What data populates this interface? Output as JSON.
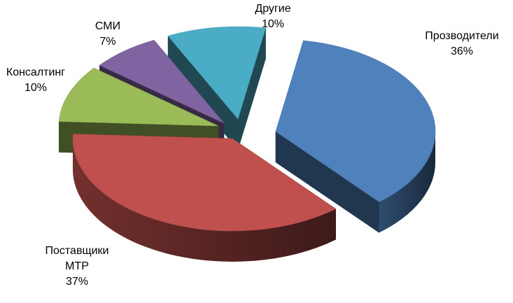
{
  "chart_data": {
    "type": "pie",
    "style": "3d-exploded",
    "slices": [
      {
        "name": "Прозводители",
        "value": 36,
        "label_text": "36%",
        "color": "#4F81BD"
      },
      {
        "name": "Поставщики МТР",
        "name_lines": [
          "Поставщики",
          "МТР"
        ],
        "value": 37,
        "label_text": "37%",
        "color": "#C0504D"
      },
      {
        "name": "Консалтинг",
        "value": 10,
        "label_text": "10%",
        "color": "#9BBB59"
      },
      {
        "name": "СМИ",
        "value": 7,
        "label_text": "7%",
        "color": "#8064A2"
      },
      {
        "name": "Другие",
        "value": 10,
        "label_text": "10%",
        "color": "#4BACC6"
      }
    ]
  }
}
